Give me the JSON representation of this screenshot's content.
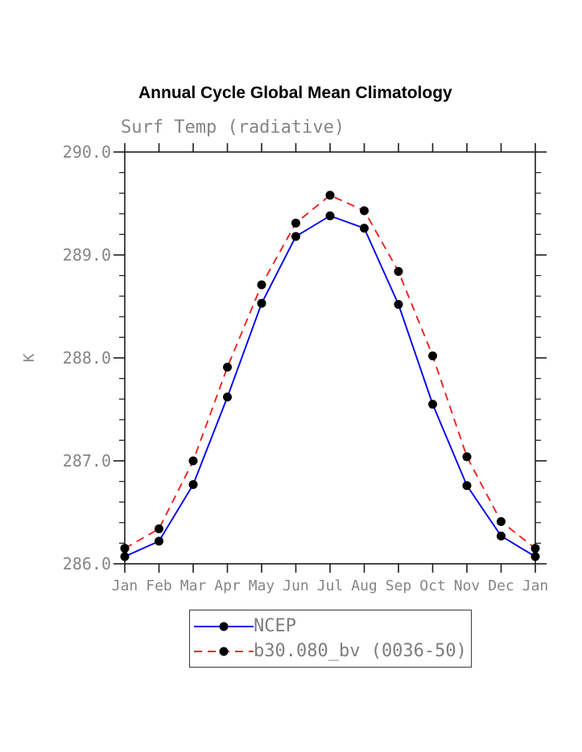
{
  "page": {
    "title": "Annual Cycle Global Mean Climatology"
  },
  "chart_data": {
    "type": "line",
    "title": "Annual Cycle Global Mean Climatology",
    "subtitle": "Surf Temp (radiative)",
    "xlabel": "",
    "ylabel": "K",
    "categories": [
      "Jan",
      "Feb",
      "Mar",
      "Apr",
      "May",
      "Jun",
      "Jul",
      "Aug",
      "Sep",
      "Oct",
      "Nov",
      "Dec",
      "Jan"
    ],
    "ylim": [
      286.0,
      290.0
    ],
    "y_ticks": [
      286.0,
      287.0,
      288.0,
      289.0,
      290.0
    ],
    "y_tick_labels": [
      "286.0",
      "287.0",
      "288.0",
      "289.0",
      "290.0"
    ],
    "y_minor_step": 0.2,
    "grid": false,
    "legend_position": "bottom-center",
    "series": [
      {
        "name": "NCEP",
        "line_style": "solid",
        "color": "#0000ee",
        "marker": "filled-circle",
        "marker_color": "#000000",
        "values": [
          286.07,
          286.22,
          286.77,
          287.62,
          288.53,
          289.18,
          289.38,
          289.26,
          288.52,
          287.55,
          286.76,
          286.27,
          286.07
        ]
      },
      {
        "name": "b30.080_bv (0036-50)",
        "line_style": "dashed",
        "color": "#ee2222",
        "marker": "filled-circle",
        "marker_color": "#000000",
        "values": [
          286.15,
          286.34,
          287.0,
          287.91,
          288.71,
          289.31,
          289.58,
          289.43,
          288.84,
          288.02,
          287.04,
          286.41,
          286.15
        ]
      }
    ],
    "colors": {
      "axis": "#1c1c1c",
      "tick_label": "#858585",
      "title": "#000000",
      "legend_border": "#3a3a3a"
    }
  }
}
